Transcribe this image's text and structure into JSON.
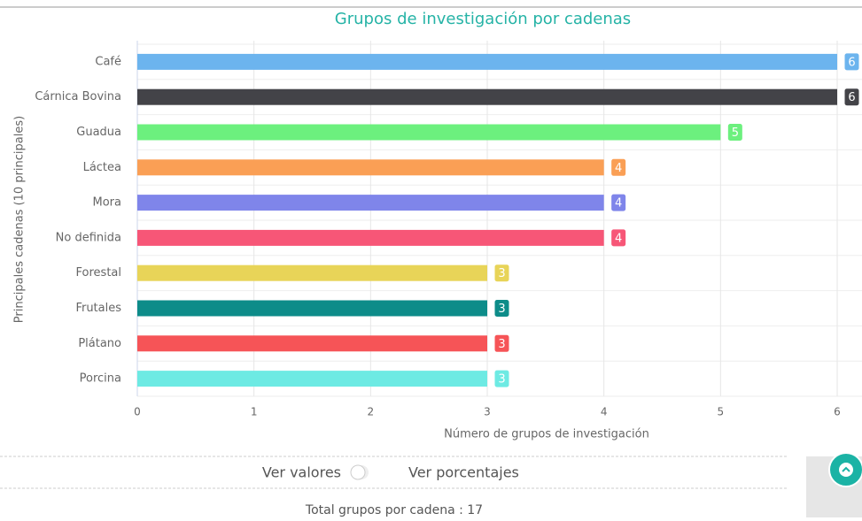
{
  "chart_data": {
    "type": "bar",
    "orientation": "horizontal",
    "title": "Grupos de investigación por cadenas",
    "x_label": "Número de grupos de investigación",
    "y_label": "Principales cadenas (10 principales)",
    "categories": [
      "Café",
      "Cárnica Bovina",
      "Guadua",
      "Láctea",
      "Mora",
      "No definida",
      "Forestal",
      "Frutales",
      "Plátano",
      "Porcina"
    ],
    "values": [
      6,
      6,
      5,
      4,
      4,
      4,
      3,
      3,
      3,
      3
    ],
    "colors": [
      "#6cb4ee",
      "#434348",
      "#6cf07e",
      "#fa9f55",
      "#7f85ea",
      "#f75677",
      "#e8d458",
      "#0d8c89",
      "#f65457",
      "#6deae3"
    ],
    "xlim": [
      0,
      6
    ],
    "xticks": [
      0,
      1,
      2,
      3,
      4,
      5,
      6
    ],
    "grid": true
  },
  "controls": {
    "left": "Ver valores",
    "right": "Ver porcentajes"
  },
  "footer": "Total grupos por cadena : 17"
}
